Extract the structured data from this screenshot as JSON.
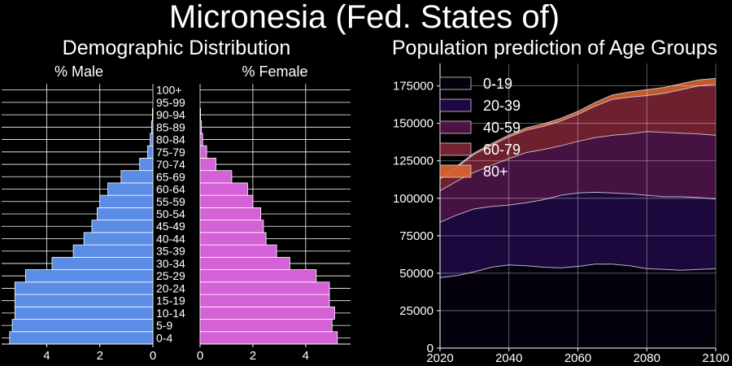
{
  "title": "Micronesia (Fed. States of)",
  "colors": {
    "background": "#000000",
    "male": "#5b8ce6",
    "female": "#d462d6",
    "grid": "#ffffff",
    "series": [
      "#04000c",
      "#1e0a44",
      "#4e1448",
      "#7a2434",
      "#d7632f"
    ]
  },
  "chart_data": [
    {
      "type": "bar",
      "orientation": "horizontal",
      "title": "Demographic Distribution",
      "left_panel_label": "% Male",
      "right_panel_label": "% Female",
      "categories": [
        "0-4",
        "5-9",
        "10-14",
        "15-19",
        "20-24",
        "25-29",
        "30-34",
        "35-39",
        "40-44",
        "45-49",
        "50-54",
        "55-59",
        "60-64",
        "65-69",
        "70-74",
        "75-79",
        "80-84",
        "85-89",
        "90-94",
        "95-99",
        "100+"
      ],
      "series": [
        {
          "name": "% Male",
          "values": [
            5.4,
            5.3,
            5.2,
            5.2,
            5.2,
            4.8,
            3.8,
            3.0,
            2.6,
            2.3,
            2.1,
            2.0,
            1.7,
            1.2,
            0.5,
            0.2,
            0.1,
            0.05,
            0.02,
            0.0,
            0.0
          ]
        },
        {
          "name": "% Female",
          "values": [
            5.2,
            5.0,
            5.1,
            4.9,
            4.9,
            4.4,
            3.4,
            2.9,
            2.5,
            2.4,
            2.3,
            2.0,
            1.8,
            1.2,
            0.6,
            0.25,
            0.1,
            0.05,
            0.02,
            0.0,
            0.0
          ]
        }
      ],
      "xlim_male": [
        5.7,
        0
      ],
      "xlim_female": [
        0,
        5.7
      ],
      "xticks_male": [
        4,
        2,
        0
      ],
      "xticks_female": [
        0,
        2,
        4
      ]
    },
    {
      "type": "area",
      "stacked": true,
      "title": "Population prediction of Age Groups",
      "x": [
        2020,
        2025,
        2030,
        2035,
        2040,
        2045,
        2050,
        2055,
        2060,
        2065,
        2070,
        2075,
        2080,
        2085,
        2090,
        2095,
        2100
      ],
      "series": [
        {
          "name": "0-19",
          "values": [
            47000,
            48500,
            51000,
            54000,
            55500,
            55000,
            54000,
            53500,
            54500,
            56000,
            56000,
            55000,
            53000,
            52500,
            52000,
            52500,
            53000
          ]
        },
        {
          "name": "20-39",
          "values": [
            37000,
            40500,
            42000,
            40500,
            40000,
            42000,
            45000,
            48500,
            49000,
            48000,
            47500,
            48000,
            49000,
            48500,
            49000,
            48000,
            46500
          ]
        },
        {
          "name": "40-59",
          "values": [
            21000,
            22500,
            24500,
            27500,
            31000,
            33500,
            33500,
            33000,
            34500,
            36500,
            38500,
            40000,
            42500,
            43000,
            42500,
            42500,
            42500
          ]
        },
        {
          "name": "60-79",
          "values": [
            8000,
            9500,
            12000,
            13500,
            14500,
            15000,
            15500,
            16500,
            18000,
            21000,
            24000,
            24500,
            24000,
            26000,
            29000,
            32000,
            34000
          ]
        },
        {
          "name": "80+",
          "values": [
            700,
            700,
            900,
            1100,
            1300,
            1500,
            1700,
            1800,
            2000,
            2500,
            3000,
            3500,
            4000,
            4000,
            4000,
            4000,
            4000
          ]
        }
      ],
      "xlim": [
        2020,
        2100
      ],
      "ylim": [
        0,
        190000
      ],
      "xticks": [
        2020,
        2040,
        2060,
        2080,
        2100
      ],
      "yticks": [
        0,
        25000,
        50000,
        75000,
        100000,
        125000,
        150000,
        175000
      ],
      "grid": true,
      "legend": "top-left"
    }
  ]
}
